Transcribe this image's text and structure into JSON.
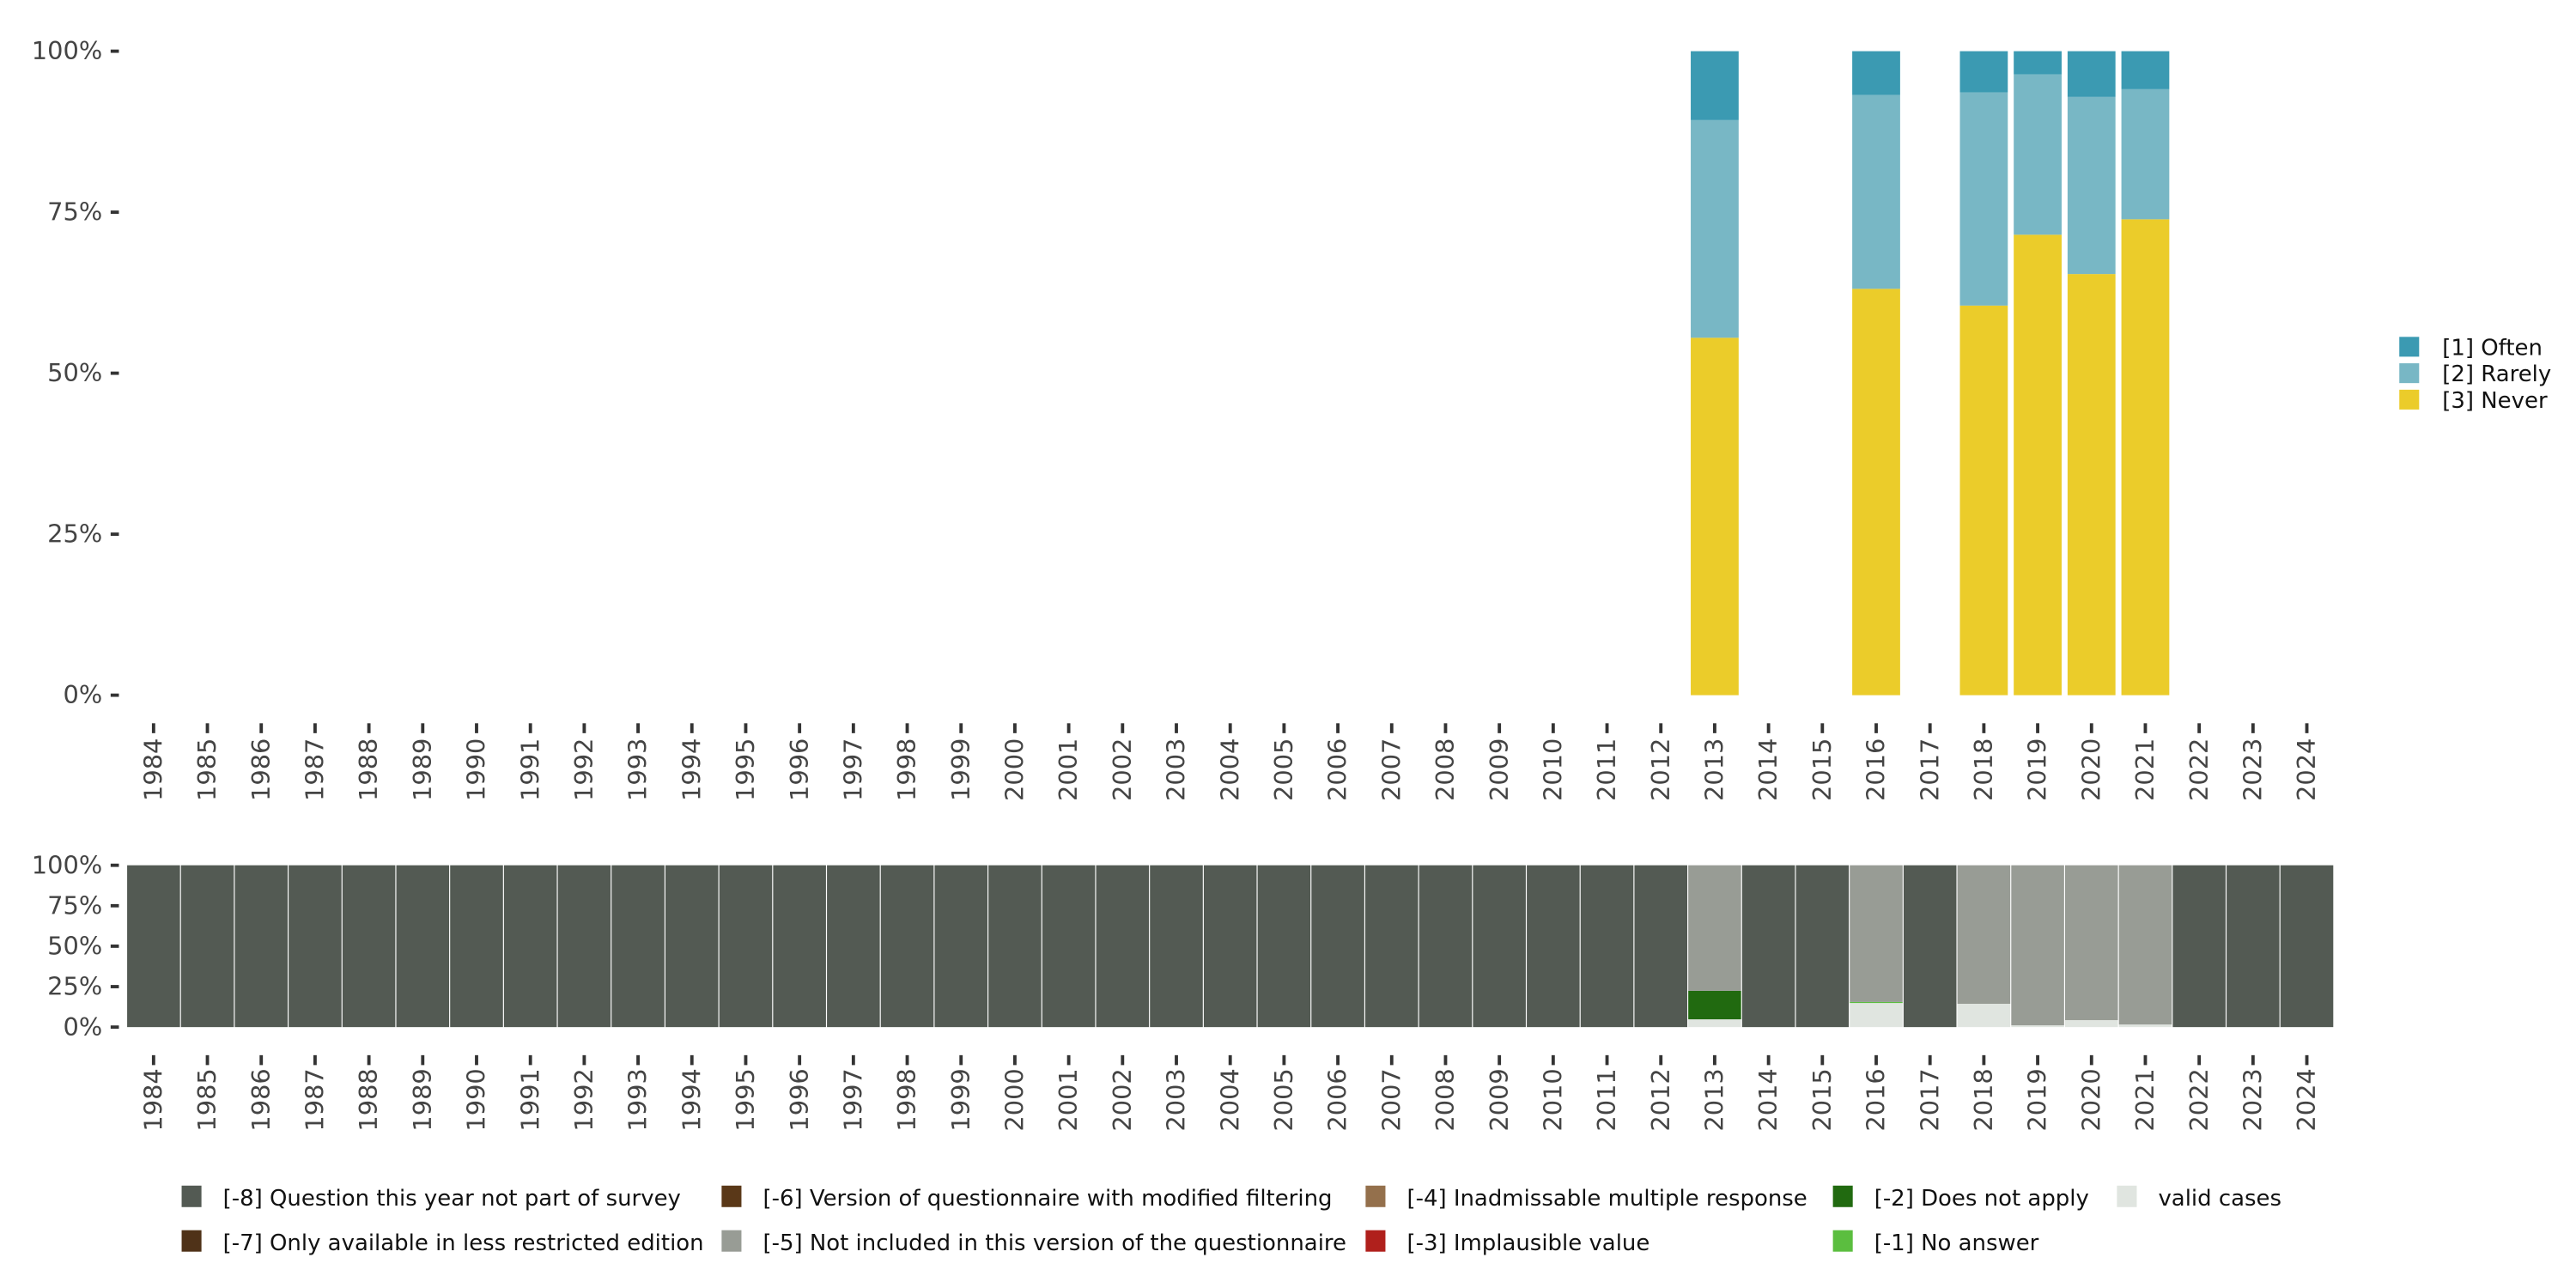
{
  "chart_data": [
    {
      "type": "bar",
      "stacked": true,
      "title": "",
      "xlabel": "",
      "ylabel": "",
      "ylim": [
        0,
        100
      ],
      "y_ticks": [
        "0%",
        "25%",
        "50%",
        "75%",
        "100%"
      ],
      "categories": [
        "1984",
        "1985",
        "1986",
        "1987",
        "1988",
        "1989",
        "1990",
        "1991",
        "1992",
        "1993",
        "1994",
        "1995",
        "1996",
        "1997",
        "1998",
        "1999",
        "2000",
        "2001",
        "2002",
        "2003",
        "2004",
        "2005",
        "2006",
        "2007",
        "2008",
        "2009",
        "2010",
        "2011",
        "2012",
        "2013",
        "2014",
        "2015",
        "2016",
        "2017",
        "2018",
        "2019",
        "2020",
        "2021",
        "2022",
        "2023",
        "2024"
      ],
      "legend_position": "right",
      "series": [
        {
          "name": "[3] Never",
          "color": "#ebcc2a",
          "values": {
            "2013": 55.5,
            "2016": 63.1,
            "2018": 60.5,
            "2019": 71.5,
            "2020": 65.4,
            "2021": 73.9
          }
        },
        {
          "name": "[2] Rarely",
          "color": "#78b7c5",
          "values": {
            "2013": 33.8,
            "2016": 30.1,
            "2018": 33.1,
            "2019": 24.9,
            "2020": 27.5,
            "2021": 20.2
          }
        },
        {
          "name": "[1] Often",
          "color": "#3b9ab2",
          "values": {
            "2013": 10.7,
            "2016": 6.8,
            "2018": 6.4,
            "2019": 3.6,
            "2020": 7.1,
            "2021": 5.9
          }
        }
      ],
      "legend_order": [
        "[1] Often",
        "[2] Rarely",
        "[3] Never"
      ]
    },
    {
      "type": "bar",
      "stacked": true,
      "title": "",
      "ylim": [
        0,
        100
      ],
      "y_ticks": [
        "0%",
        "25%",
        "50%",
        "75%",
        "100%"
      ],
      "legend_position": "bottom",
      "default_series": "[-8] Question this year not part of survey",
      "series": [
        {
          "name": "valid cases",
          "color": "#e0e5e0",
          "values": {
            "2013": 4.8,
            "2016": 15.2,
            "2018": 14.4,
            "2019": 1.1,
            "2020": 4.3,
            "2021": 1.6
          }
        },
        {
          "name": "[-1] No answer",
          "color": "#5bbe3f",
          "values": {
            "2016": 0.3
          }
        },
        {
          "name": "[-2] Does not apply",
          "color": "#216a10",
          "values": {
            "2013": 17.6
          }
        },
        {
          "name": "[-5] Not included in this version of the questionnaire",
          "color": "#989c95",
          "values": {
            "2013": 77.6,
            "2016": 84.5,
            "2018": 85.6,
            "2019": 98.9,
            "2020": 95.7,
            "2021": 98.4
          }
        },
        {
          "name": "[-8] Question this year not part of survey",
          "color": "#535a53",
          "values_other_years": 100
        }
      ],
      "legend_items": [
        {
          "name": "[-8] Question this year not part of survey",
          "color": "#535a53"
        },
        {
          "name": "[-7] Only available in less restricted edition",
          "color": "#4f3218"
        },
        {
          "name": "[-6] Version of questionnaire with modified filtering",
          "color": "#5a3818"
        },
        {
          "name": "[-5] Not included in this version of the questionnaire",
          "color": "#989c95"
        },
        {
          "name": "[-4] Inadmissable multiple response",
          "color": "#94704c"
        },
        {
          "name": "[-3] Implausible value",
          "color": "#b0201c"
        },
        {
          "name": "[-2] Does not apply",
          "color": "#216a10"
        },
        {
          "name": "[-1] No answer",
          "color": "#5bbe3f"
        },
        {
          "name": "valid cases",
          "color": "#e0e5e0"
        }
      ]
    }
  ]
}
